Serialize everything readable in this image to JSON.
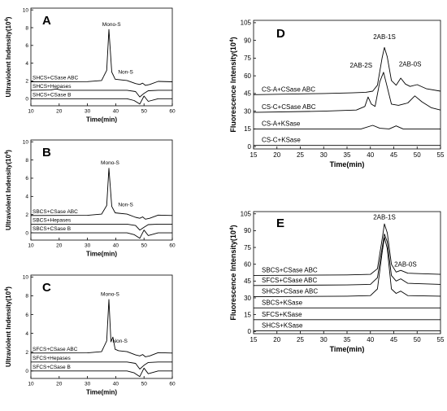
{
  "chart_data": [
    {
      "panel": "A",
      "type": "line",
      "ylabel_main": "Ultraviolent Indensity(10",
      "ylabel_exp": "4",
      "ylabel_close": ")",
      "xlabel": "Time(min)",
      "xlim": [
        10,
        60
      ],
      "ylim": [
        -0.8,
        10.2
      ],
      "xticks": [
        "10",
        "20",
        "30",
        "40",
        "50",
        "60"
      ],
      "yticks": [
        "0",
        "2",
        "4",
        "6",
        "8",
        "10"
      ],
      "annotations": [
        {
          "text": "Mono-S",
          "x": 38.5,
          "y": 8.2
        },
        {
          "text": "Non-S",
          "x": 43.5,
          "y": 2.8
        }
      ],
      "series": [
        {
          "name": "SHCS+CSase ABC",
          "points": [
            [
              10,
              1.9
            ],
            [
              30,
              1.92
            ],
            [
              35,
              2.05
            ],
            [
              36.8,
              3.2
            ],
            [
              37.6,
              7.8
            ],
            [
              38.6,
              3.0
            ],
            [
              39.8,
              2.2
            ],
            [
              41,
              2.15
            ],
            [
              44,
              2.05
            ],
            [
              47,
              1.7
            ],
            [
              48.5,
              1.6
            ],
            [
              49.5,
              1.75
            ],
            [
              50.5,
              1.5
            ],
            [
              52,
              1.6
            ],
            [
              55,
              1.95
            ],
            [
              60,
              1.9
            ]
          ]
        },
        {
          "name": "SHCS+Hepases",
          "points": [
            [
              10,
              0.95
            ],
            [
              17,
              0.98
            ],
            [
              19,
              1.1
            ],
            [
              21,
              0.95
            ],
            [
              44,
              0.95
            ],
            [
              47,
              0.8
            ],
            [
              48.5,
              0.2
            ],
            [
              50,
              0.6
            ],
            [
              51.5,
              0.9
            ],
            [
              55,
              0.95
            ],
            [
              60,
              0.95
            ]
          ]
        },
        {
          "name": "SHCS+CSase B",
          "points": [
            [
              10,
              0
            ],
            [
              44,
              0
            ],
            [
              46.5,
              -0.2
            ],
            [
              48.5,
              -0.6
            ],
            [
              50,
              0.3
            ],
            [
              51.5,
              -0.3
            ],
            [
              55,
              0
            ],
            [
              60,
              0
            ]
          ]
        }
      ]
    },
    {
      "panel": "B",
      "type": "line",
      "ylabel_main": "Ultraviolent Indensity(10",
      "ylabel_exp": "4",
      "ylabel_close": ")",
      "xlabel": "Time(min)",
      "xlim": [
        10,
        60
      ],
      "ylim": [
        -0.8,
        10.2
      ],
      "xticks": [
        "10",
        "20",
        "30",
        "40",
        "50",
        "60"
      ],
      "yticks": [
        "0",
        "2",
        "4",
        "6",
        "8",
        "10"
      ],
      "annotations": [
        {
          "text": "Mono-S",
          "x": 38,
          "y": 7.5
        },
        {
          "text": "Non-S",
          "x": 43.5,
          "y": 2.9
        }
      ],
      "series": [
        {
          "name": "SBCS+CSase ABC",
          "points": [
            [
              10,
              1.9
            ],
            [
              30,
              1.92
            ],
            [
              35,
              2.05
            ],
            [
              36.8,
              3.0
            ],
            [
              37.6,
              7.1
            ],
            [
              38.6,
              2.9
            ],
            [
              39.8,
              2.2
            ],
            [
              41,
              2.15
            ],
            [
              44,
              2.05
            ],
            [
              47,
              1.7
            ],
            [
              48.5,
              1.6
            ],
            [
              49.5,
              1.75
            ],
            [
              50.5,
              1.5
            ],
            [
              52,
              1.6
            ],
            [
              55,
              1.95
            ],
            [
              60,
              1.9
            ]
          ]
        },
        {
          "name": "SBCS+Hepases",
          "points": [
            [
              10,
              0.95
            ],
            [
              44,
              0.95
            ],
            [
              47,
              0.8
            ],
            [
              48.5,
              0.3
            ],
            [
              50,
              0.6
            ],
            [
              51.5,
              0.9
            ],
            [
              55,
              0.95
            ],
            [
              60,
              0.95
            ]
          ]
        },
        {
          "name": "SBCS+CSase B",
          "points": [
            [
              10,
              0
            ],
            [
              44,
              0
            ],
            [
              46.5,
              -0.2
            ],
            [
              48.5,
              -0.6
            ],
            [
              50,
              0.3
            ],
            [
              51.5,
              -0.3
            ],
            [
              55,
              0
            ],
            [
              60,
              0
            ]
          ]
        }
      ]
    },
    {
      "panel": "C",
      "type": "line",
      "ylabel_main": "Ultraviolent Indensity(10",
      "ylabel_exp": "4",
      "ylabel_close": ")",
      "xlabel": "Time(min)",
      "xlim": [
        10,
        60
      ],
      "ylim": [
        -0.8,
        10.2
      ],
      "xticks": [
        "10",
        "20",
        "30",
        "40",
        "50",
        "60"
      ],
      "yticks": [
        "0",
        "2",
        "4",
        "6",
        "8",
        "10"
      ],
      "annotations": [
        {
          "text": "Mono-S",
          "x": 38,
          "y": 8.0
        },
        {
          "text": "Non-S",
          "x": 41.5,
          "y": 3.0
        }
      ],
      "series": [
        {
          "name": "SFCS+CSase ABC",
          "points": [
            [
              10,
              1.9
            ],
            [
              30,
              1.92
            ],
            [
              35,
              2.05
            ],
            [
              36.8,
              3.2
            ],
            [
              37.6,
              7.6
            ],
            [
              38.3,
              3.1
            ],
            [
              39,
              3.6
            ],
            [
              39.8,
              2.3
            ],
            [
              41,
              2.15
            ],
            [
              44,
              2.05
            ],
            [
              47,
              1.7
            ],
            [
              48.5,
              1.6
            ],
            [
              49.5,
              1.75
            ],
            [
              50.5,
              1.5
            ],
            [
              52,
              1.6
            ],
            [
              55,
              1.95
            ],
            [
              60,
              1.9
            ]
          ]
        },
        {
          "name": "SFCS+Hepases",
          "points": [
            [
              10,
              0.95
            ],
            [
              44,
              0.95
            ],
            [
              47,
              0.8
            ],
            [
              48.5,
              0.2
            ],
            [
              50,
              0.6
            ],
            [
              51.5,
              0.9
            ],
            [
              55,
              0.95
            ],
            [
              60,
              0.95
            ]
          ]
        },
        {
          "name": "SFCS+CSase B",
          "points": [
            [
              10,
              0
            ],
            [
              44,
              0
            ],
            [
              46.5,
              -0.2
            ],
            [
              48.5,
              -0.6
            ],
            [
              50,
              0.3
            ],
            [
              51.5,
              -0.3
            ],
            [
              55,
              0
            ],
            [
              60,
              0
            ]
          ]
        }
      ]
    },
    {
      "panel": "D",
      "type": "line",
      "ylabel_main": "Fluorescence Intensity(10",
      "ylabel_exp": "4",
      "ylabel_close": ")",
      "xlabel": "Time(min)",
      "xlim": [
        15,
        55
      ],
      "ylim": [
        -2,
        107
      ],
      "xticks": [
        "15",
        "20",
        "25",
        "30",
        "35",
        "40",
        "45",
        "50",
        "55"
      ],
      "yticks": [
        "0",
        "15",
        "30",
        "45",
        "60",
        "75",
        "90",
        "105"
      ],
      "annotations": [
        {
          "text": "2AB-1S",
          "x": 43,
          "y": 91
        },
        {
          "text": "2AB-2S",
          "x": 38,
          "y": 67
        },
        {
          "text": "2AB-0S",
          "x": 48.5,
          "y": 68
        }
      ],
      "series": [
        {
          "name": "CS-A+CSase ABC",
          "points": [
            [
              15,
              44
            ],
            [
              30,
              45
            ],
            [
              36,
              45.5
            ],
            [
              39,
              46
            ],
            [
              40.5,
              47
            ],
            [
              41.5,
              52
            ],
            [
              42.5,
              75
            ],
            [
              43,
              84
            ],
            [
              43.6,
              76
            ],
            [
              44.5,
              56
            ],
            [
              45.5,
              52
            ],
            [
              46.5,
              58
            ],
            [
              47.5,
              53
            ],
            [
              48.5,
              51
            ],
            [
              50,
              52.5
            ],
            [
              52,
              49
            ],
            [
              55,
              47
            ]
          ]
        },
        {
          "name": "CS-C+CSase ABC",
          "points": [
            [
              15,
              29
            ],
            [
              30,
              30
            ],
            [
              37,
              31
            ],
            [
              38.8,
              34
            ],
            [
              39.5,
              42
            ],
            [
              40.2,
              36
            ],
            [
              41,
              34
            ],
            [
              42,
              55
            ],
            [
              42.8,
              63
            ],
            [
              43.5,
              52
            ],
            [
              44.5,
              36
            ],
            [
              46,
              35
            ],
            [
              48,
              37
            ],
            [
              49.5,
              43
            ],
            [
              51,
              38
            ],
            [
              53,
              33
            ],
            [
              55,
              31
            ]
          ]
        },
        {
          "name": "CS-A+KSase",
          "points": [
            [
              15,
              15
            ],
            [
              38,
              15
            ],
            [
              40.5,
              18
            ],
            [
              42,
              15.5
            ],
            [
              44,
              15
            ],
            [
              45.5,
              17.5
            ],
            [
              47,
              15
            ],
            [
              55,
              15
            ]
          ]
        },
        {
          "name": "CS-C+KSase",
          "points": [
            [
              15,
              1
            ],
            [
              55,
              1
            ]
          ]
        }
      ]
    },
    {
      "panel": "E",
      "type": "line",
      "ylabel_main": "Fluorescence Intensity(10",
      "ylabel_exp": "4",
      "ylabel_close": ")",
      "xlabel": "Time(min)",
      "xlim": [
        15,
        55
      ],
      "ylim": [
        -2,
        107
      ],
      "xticks": [
        "15",
        "20",
        "25",
        "30",
        "35",
        "40",
        "45",
        "50",
        "55"
      ],
      "yticks": [
        "0",
        "15",
        "30",
        "45",
        "60",
        "75",
        "90",
        "105"
      ],
      "annotations": [
        {
          "text": "2AB-1S",
          "x": 43,
          "y": 100
        },
        {
          "text": "2AB-0S",
          "x": 47.5,
          "y": 58
        }
      ],
      "series": [
        {
          "name": "SBCS+CSase ABC",
          "points": [
            [
              15,
              50
            ],
            [
              35,
              50.5
            ],
            [
              40,
              51
            ],
            [
              41.5,
              56
            ],
            [
              42.5,
              82
            ],
            [
              43,
              96
            ],
            [
              43.6,
              88
            ],
            [
              44.5,
              60
            ],
            [
              45.5,
              53
            ],
            [
              46.5,
              54.5
            ],
            [
              48,
              52
            ],
            [
              55,
              51
            ]
          ]
        },
        {
          "name": "SFCS+CSase ABC",
          "points": [
            [
              15,
              41
            ],
            [
              35,
              41.5
            ],
            [
              40,
              42
            ],
            [
              41.5,
              48
            ],
            [
              42.5,
              74
            ],
            [
              43,
              87
            ],
            [
              43.6,
              80
            ],
            [
              44.5,
              50
            ],
            [
              45.5,
              45
            ],
            [
              46.5,
              47
            ],
            [
              48,
              43
            ],
            [
              55,
              42
            ]
          ]
        },
        {
          "name": "SHCS+CSase ABC",
          "points": [
            [
              15,
              31
            ],
            [
              35,
              31.5
            ],
            [
              40,
              32
            ],
            [
              41.5,
              38
            ],
            [
              42.5,
              70
            ],
            [
              43,
              84
            ],
            [
              43.6,
              74
            ],
            [
              44.5,
              38
            ],
            [
              45.5,
              34
            ],
            [
              46.5,
              36
            ],
            [
              48,
              32
            ],
            [
              55,
              31.5
            ]
          ]
        },
        {
          "name": "SBCS+KSase",
          "points": [
            [
              15,
              21
            ],
            [
              55,
              21
            ]
          ]
        },
        {
          "name": "SFCS+KSase",
          "points": [
            [
              15,
              10.5
            ],
            [
              55,
              10.5
            ]
          ]
        },
        {
          "name": "SHCS+KSase",
          "points": [
            [
              15,
              0.5
            ],
            [
              55,
              0.5
            ]
          ]
        }
      ]
    }
  ]
}
